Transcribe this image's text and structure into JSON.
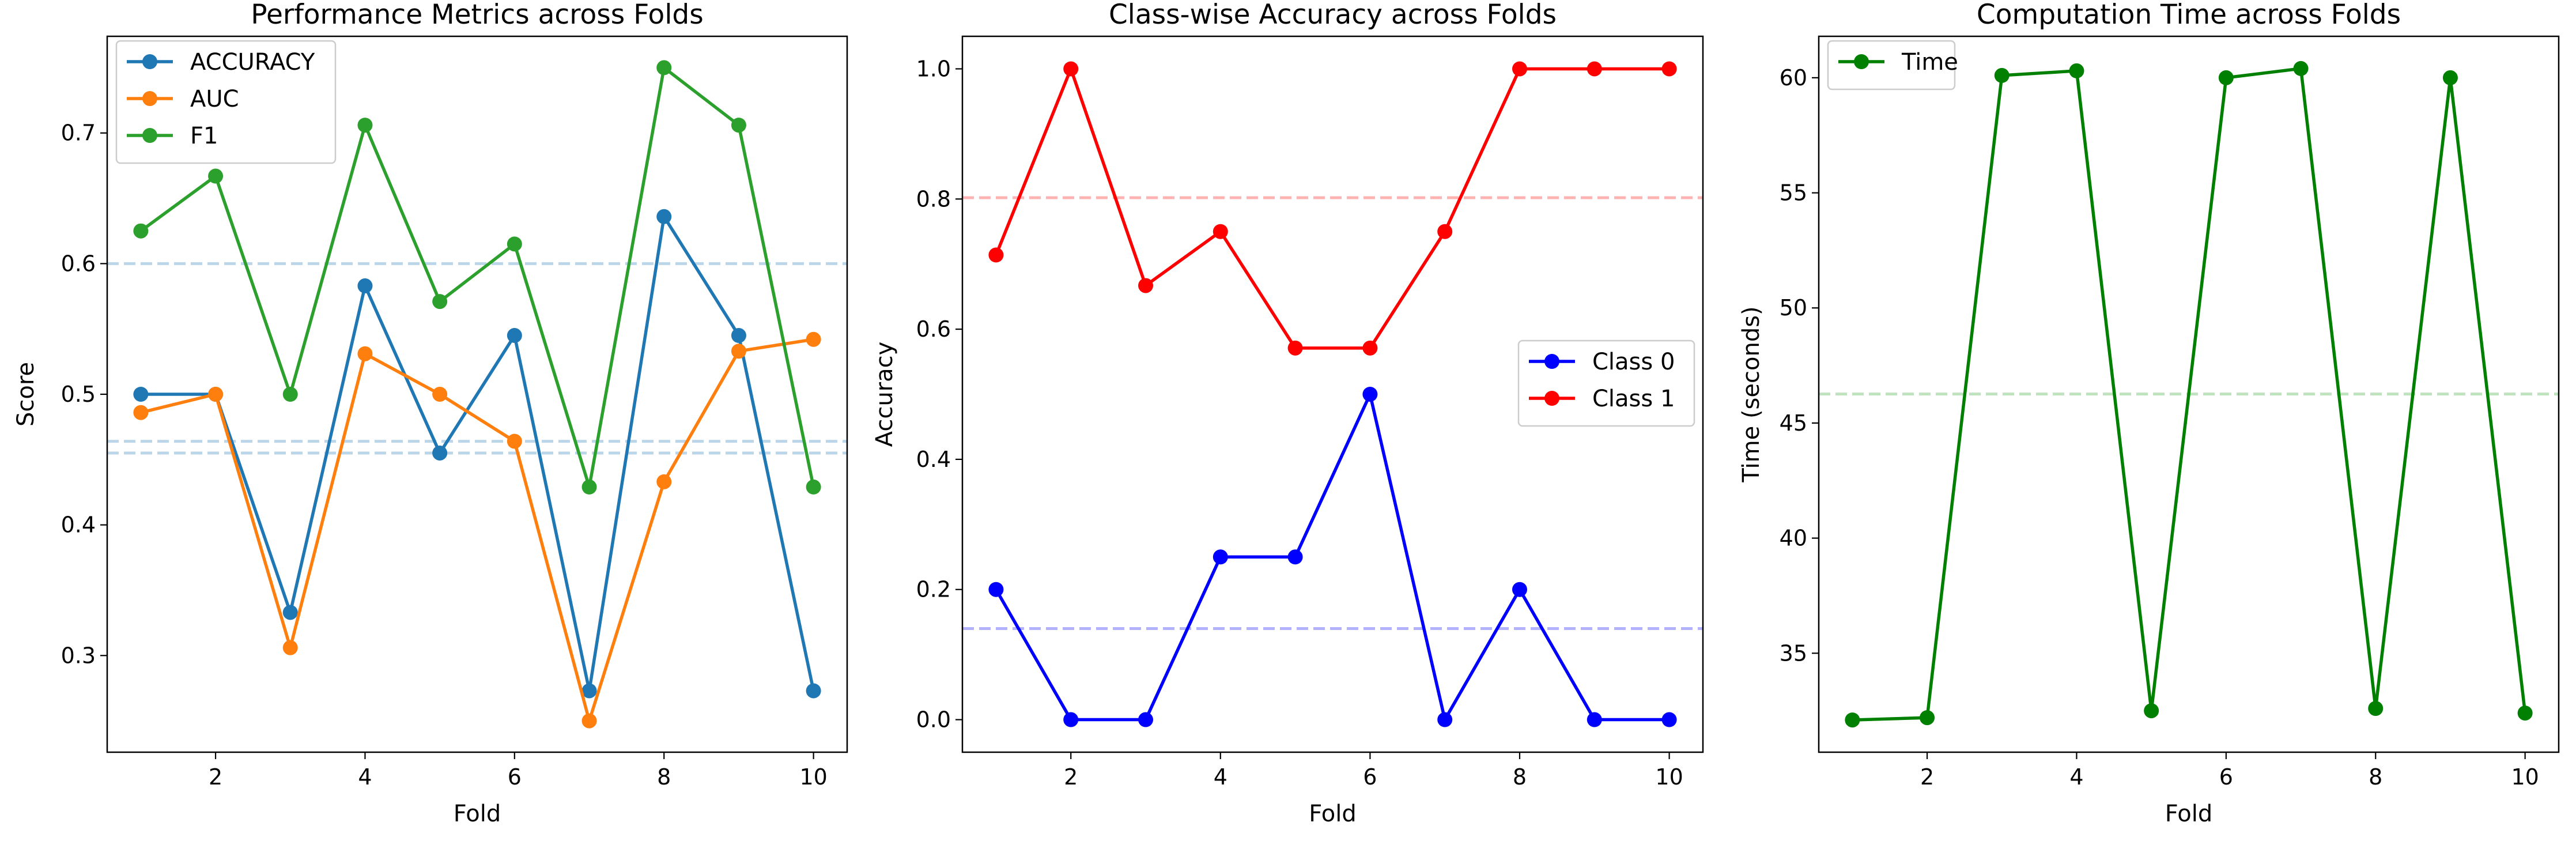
{
  "chart_data": [
    {
      "type": "line",
      "title": "Performance Metrics across Folds",
      "xlabel": "Fold",
      "ylabel": "Score",
      "xlim": [
        0.55,
        10.45
      ],
      "ylim": [
        0.226,
        0.774
      ],
      "xticks": [
        2,
        4,
        6,
        8,
        10
      ],
      "yticks": [
        0.3,
        0.4,
        0.5,
        0.6,
        0.7
      ],
      "x": [
        1,
        2,
        3,
        4,
        5,
        6,
        7,
        8,
        9,
        10
      ],
      "series": [
        {
          "name": "ACCURACY",
          "color": "#1f77b4",
          "values": [
            0.5,
            0.5,
            0.333,
            0.583,
            0.455,
            0.545,
            0.273,
            0.636,
            0.545,
            0.273
          ]
        },
        {
          "name": "AUC",
          "color": "#ff7f0e",
          "values": [
            0.486,
            0.5,
            0.306,
            0.531,
            0.5,
            0.464,
            0.25,
            0.433,
            0.533,
            0.542
          ]
        },
        {
          "name": "F1",
          "color": "#2ca02c",
          "values": [
            0.625,
            0.667,
            0.5,
            0.706,
            0.571,
            0.615,
            0.429,
            0.75,
            0.706,
            0.429
          ]
        }
      ],
      "hlines": [
        {
          "y": 0.6,
          "color": "#1f77b4"
        },
        {
          "y": 0.464,
          "color": "#1f77b4"
        },
        {
          "y": 0.455,
          "color": "#1f77b4"
        }
      ],
      "grid": false,
      "legend_position": "upper-left"
    },
    {
      "type": "line",
      "title": "Class-wise Accuracy across Folds",
      "xlabel": "Fold",
      "ylabel": "Accuracy",
      "xlim": [
        0.55,
        10.45
      ],
      "ylim": [
        -0.05,
        1.05
      ],
      "xticks": [
        2,
        4,
        6,
        8,
        10
      ],
      "yticks": [
        0.0,
        0.2,
        0.4,
        0.6,
        0.8,
        1.0
      ],
      "ytick_labels": [
        "0.0",
        "0.2",
        "0.4",
        "0.6",
        "0.8",
        "1.0"
      ],
      "x": [
        1,
        2,
        3,
        4,
        5,
        6,
        7,
        8,
        9,
        10
      ],
      "series": [
        {
          "name": "Class 0",
          "color": "#0000ff",
          "values": [
            0.2,
            0.0,
            0.0,
            0.25,
            0.25,
            0.5,
            0.0,
            0.2,
            0.0,
            0.0
          ]
        },
        {
          "name": "Class 1",
          "color": "#ff0000",
          "values": [
            0.714,
            1.0,
            0.667,
            0.75,
            0.571,
            0.571,
            0.75,
            1.0,
            1.0,
            1.0
          ]
        }
      ],
      "hlines": [
        {
          "y": 0.14,
          "color": "#0000ff"
        },
        {
          "y": 0.802,
          "color": "#ff0000"
        }
      ],
      "grid": false,
      "legend_position": "center-right"
    },
    {
      "type": "line",
      "title": "Computation Time across Folds",
      "xlabel": "Fold",
      "ylabel": "Time (seconds)",
      "xlim": [
        0.55,
        10.45
      ],
      "ylim": [
        30.7,
        61.8
      ],
      "xticks": [
        2,
        4,
        6,
        8,
        10
      ],
      "yticks": [
        35,
        40,
        45,
        50,
        55,
        60
      ],
      "x": [
        1,
        2,
        3,
        4,
        5,
        6,
        7,
        8,
        9,
        10
      ],
      "series": [
        {
          "name": "Time",
          "color": "#008000",
          "values": [
            32.1,
            32.2,
            60.1,
            60.3,
            32.5,
            60.0,
            60.4,
            32.6,
            60.0,
            32.4
          ]
        }
      ],
      "hlines": [
        {
          "y": 46.26,
          "color": "#2ca02c"
        }
      ],
      "grid": false,
      "legend_position": "upper-left"
    }
  ]
}
